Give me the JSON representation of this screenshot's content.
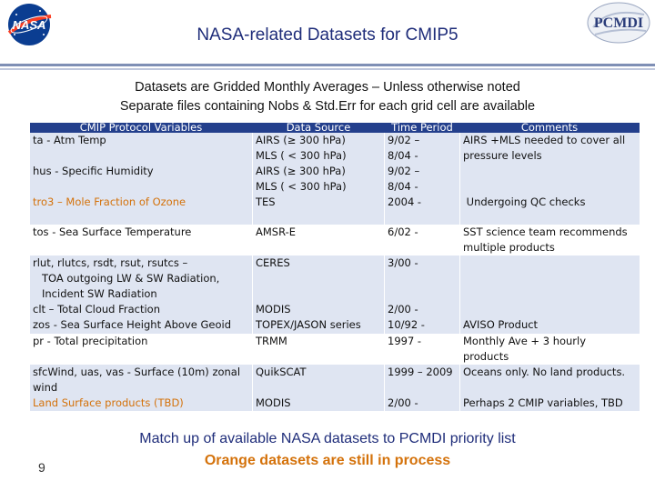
{
  "header": {
    "title": "NASA-related Datasets for CMIP5",
    "left_logo_text": "NASA",
    "right_logo_text": "PCMDI"
  },
  "subtitle": {
    "line1": "Datasets are Gridded Monthly Averages – Unless otherwise noted",
    "line2": "Separate files containing Nobs & Std.Err for each grid cell are available"
  },
  "table": {
    "headers": [
      "CMIP Protocol Variables",
      "Data Source",
      "Time Period",
      "Comments"
    ],
    "rows": [
      {
        "var": [
          "ta - Atm Temp"
        ],
        "src": [
          "AIRS (≥ 300 hPa)",
          "MLS ( < 300 hPa)"
        ],
        "time": [
          "9/02 –",
          "8/04 -"
        ],
        "comm": [
          "AIRS +MLS needed to cover all",
          "pressure levels"
        ]
      },
      {
        "var": [
          "hus - Specific Humidity"
        ],
        "src": [
          "AIRS (≥ 300 hPa)",
          "MLS ( < 300 hPa)"
        ],
        "time": [
          "9/02 –",
          "8/04 -"
        ],
        "comm": [
          ""
        ]
      },
      {
        "var": [
          "tro3 – Mole Fraction of Ozone"
        ],
        "src": [
          "TES"
        ],
        "time": [
          "2004 -"
        ],
        "comm": [
          " Undergoing QC checks"
        ]
      },
      {
        "var": [
          "tos - Sea Surface Temperature"
        ],
        "src": [
          "AMSR-E"
        ],
        "time": [
          "6/02 -"
        ],
        "comm": [
          "SST science team recommends",
          "multiple products"
        ]
      },
      {
        "var": [
          "rlut, rlutcs, rsdt, rsut, rsutcs –",
          "TOA outgoing LW & SW Radiation,",
          "Incident SW Radiation"
        ],
        "src": [
          "CERES"
        ],
        "time": [
          "3/00 -"
        ],
        "comm": [
          ""
        ]
      },
      {
        "var": [
          "clt – Total Cloud Fraction",
          "zos - Sea Surface Height Above Geoid"
        ],
        "src": [
          "MODIS",
          "TOPEX/JASON series"
        ],
        "time": [
          "2/00 -",
          "10/92 -"
        ],
        "comm": [
          "",
          "AVISO Product"
        ]
      },
      {
        "var": [
          "pr - Total precipitation"
        ],
        "src": [
          "TRMM"
        ],
        "time": [
          "1997 -"
        ],
        "comm": [
          "Monthly Ave + 3 hourly",
          "products"
        ]
      },
      {
        "var": [
          "sfcWind, uas, vas - Surface (10m) zonal",
          "wind"
        ],
        "src": [
          "QuikSCAT"
        ],
        "time": [
          "1999 – 2009"
        ],
        "comm": [
          "Oceans only.  No land products."
        ]
      },
      {
        "var": [
          "Land Surface products (TBD)"
        ],
        "src": [
          "MODIS"
        ],
        "time": [
          "2/00 -"
        ],
        "comm": [
          "Perhaps 2 CMIP variables, TBD"
        ]
      }
    ]
  },
  "footer": {
    "line1": "Match up of available NASA datasets to PCMDI priority list",
    "line2": "Orange datasets are still in process",
    "page_number": "9"
  },
  "colors": {
    "header_blue": "#233f8c",
    "band": "#dfe5f2",
    "orange": "#d4720b",
    "title_blue": "#1f2d7a"
  }
}
